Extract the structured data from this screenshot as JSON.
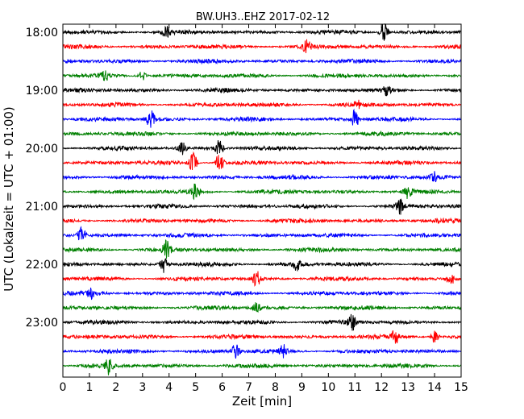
{
  "chart_data": {
    "type": "line",
    "title": "BW.UH3..EHZ 2017-02-12",
    "xlabel": "Zeit  [min]",
    "ylabel": "UTC (Lokalzeit = UTC + 01:00)",
    "xlim": [
      0,
      15
    ],
    "x_ticks": [
      "0",
      "1",
      "2",
      "3",
      "4",
      "5",
      "6",
      "7",
      "8",
      "9",
      "10",
      "11",
      "12",
      "13",
      "14",
      "15"
    ],
    "y_ticks": [
      "18:00",
      "19:00",
      "20:00",
      "21:00",
      "22:00",
      "23:00"
    ],
    "start_time": "18:00",
    "trace_interval_minutes": 15,
    "trace_count": 24,
    "color_cycle": [
      "#000000",
      "#ff0000",
      "#0000ff",
      "#008000"
    ],
    "grid": false,
    "legend": "none",
    "events": [
      {
        "trace_start": "18:00",
        "minute": 12.1,
        "strength": 1.0
      },
      {
        "trace_start": "18:00",
        "minute": 3.9,
        "strength": 0.5
      },
      {
        "trace_start": "18:15",
        "minute": 9.2,
        "strength": 0.7
      },
      {
        "trace_start": "18:45",
        "minute": 3.0,
        "strength": 0.5
      },
      {
        "trace_start": "18:45",
        "minute": 1.6,
        "strength": 0.4
      },
      {
        "trace_start": "19:00",
        "minute": 12.2,
        "strength": 0.5
      },
      {
        "trace_start": "19:15",
        "minute": 11.1,
        "strength": 0.4
      },
      {
        "trace_start": "19:30",
        "minute": 3.3,
        "strength": 0.9
      },
      {
        "trace_start": "19:30",
        "minute": 11.0,
        "strength": 0.9
      },
      {
        "trace_start": "20:00",
        "minute": 4.5,
        "strength": 0.6
      },
      {
        "trace_start": "20:00",
        "minute": 5.9,
        "strength": 0.9
      },
      {
        "trace_start": "20:15",
        "minute": 4.9,
        "strength": 1.0
      },
      {
        "trace_start": "20:15",
        "minute": 5.9,
        "strength": 1.0
      },
      {
        "trace_start": "20:30",
        "minute": 14.0,
        "strength": 0.5
      },
      {
        "trace_start": "20:45",
        "minute": 5.0,
        "strength": 0.8
      },
      {
        "trace_start": "20:45",
        "minute": 13.0,
        "strength": 0.6
      },
      {
        "trace_start": "21:00",
        "minute": 12.7,
        "strength": 0.7
      },
      {
        "trace_start": "21:30",
        "minute": 0.7,
        "strength": 0.8
      },
      {
        "trace_start": "21:45",
        "minute": 3.9,
        "strength": 1.0
      },
      {
        "trace_start": "22:00",
        "minute": 3.8,
        "strength": 1.0
      },
      {
        "trace_start": "22:00",
        "minute": 8.8,
        "strength": 0.6
      },
      {
        "trace_start": "22:15",
        "minute": 7.3,
        "strength": 0.8
      },
      {
        "trace_start": "22:15",
        "minute": 14.6,
        "strength": 0.6
      },
      {
        "trace_start": "22:30",
        "minute": 1.1,
        "strength": 0.5
      },
      {
        "trace_start": "22:45",
        "minute": 7.3,
        "strength": 0.5
      },
      {
        "trace_start": "23:00",
        "minute": 10.9,
        "strength": 0.8
      },
      {
        "trace_start": "23:15",
        "minute": 12.5,
        "strength": 0.7
      },
      {
        "trace_start": "23:15",
        "minute": 14.0,
        "strength": 0.6
      },
      {
        "trace_start": "23:30",
        "minute": 6.5,
        "strength": 0.7
      },
      {
        "trace_start": "23:30",
        "minute": 8.3,
        "strength": 0.6
      },
      {
        "trace_start": "23:45",
        "minute": 1.7,
        "strength": 0.8
      }
    ]
  }
}
